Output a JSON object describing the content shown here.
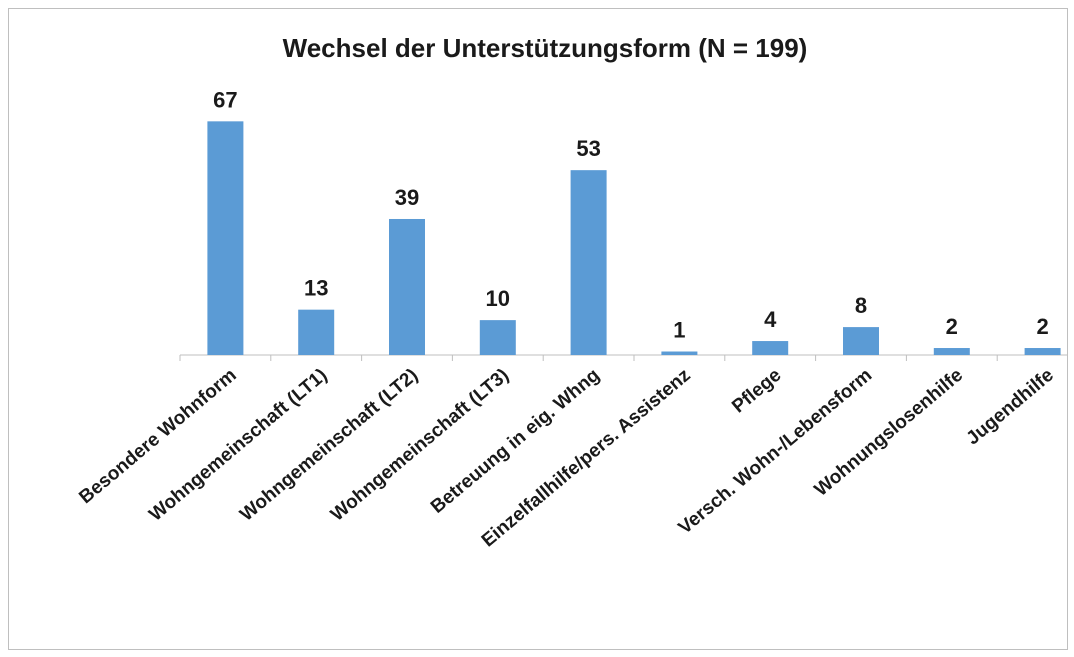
{
  "chart_data": {
    "type": "bar",
    "title": "Wechsel der Unterstützungsform (N = 199)",
    "categories": [
      "Besondere Wohnform",
      "Wohngemeinschaft (LT1)",
      "Wohngemeinschaft (LT2)",
      "Wohngemeinschaft (LT3)",
      "Betreuung in eig. Whng",
      "Einzelfallhilfe/pers. Assistenz",
      "Pflege",
      "Versch. Wohn-/Lebensform",
      "Wohnungslosenhilfe",
      "Jugendhilfe"
    ],
    "values": [
      67,
      13,
      39,
      10,
      53,
      1,
      4,
      8,
      2,
      2
    ],
    "color": "#5b9bd5",
    "ylim": [
      0,
      80
    ]
  }
}
